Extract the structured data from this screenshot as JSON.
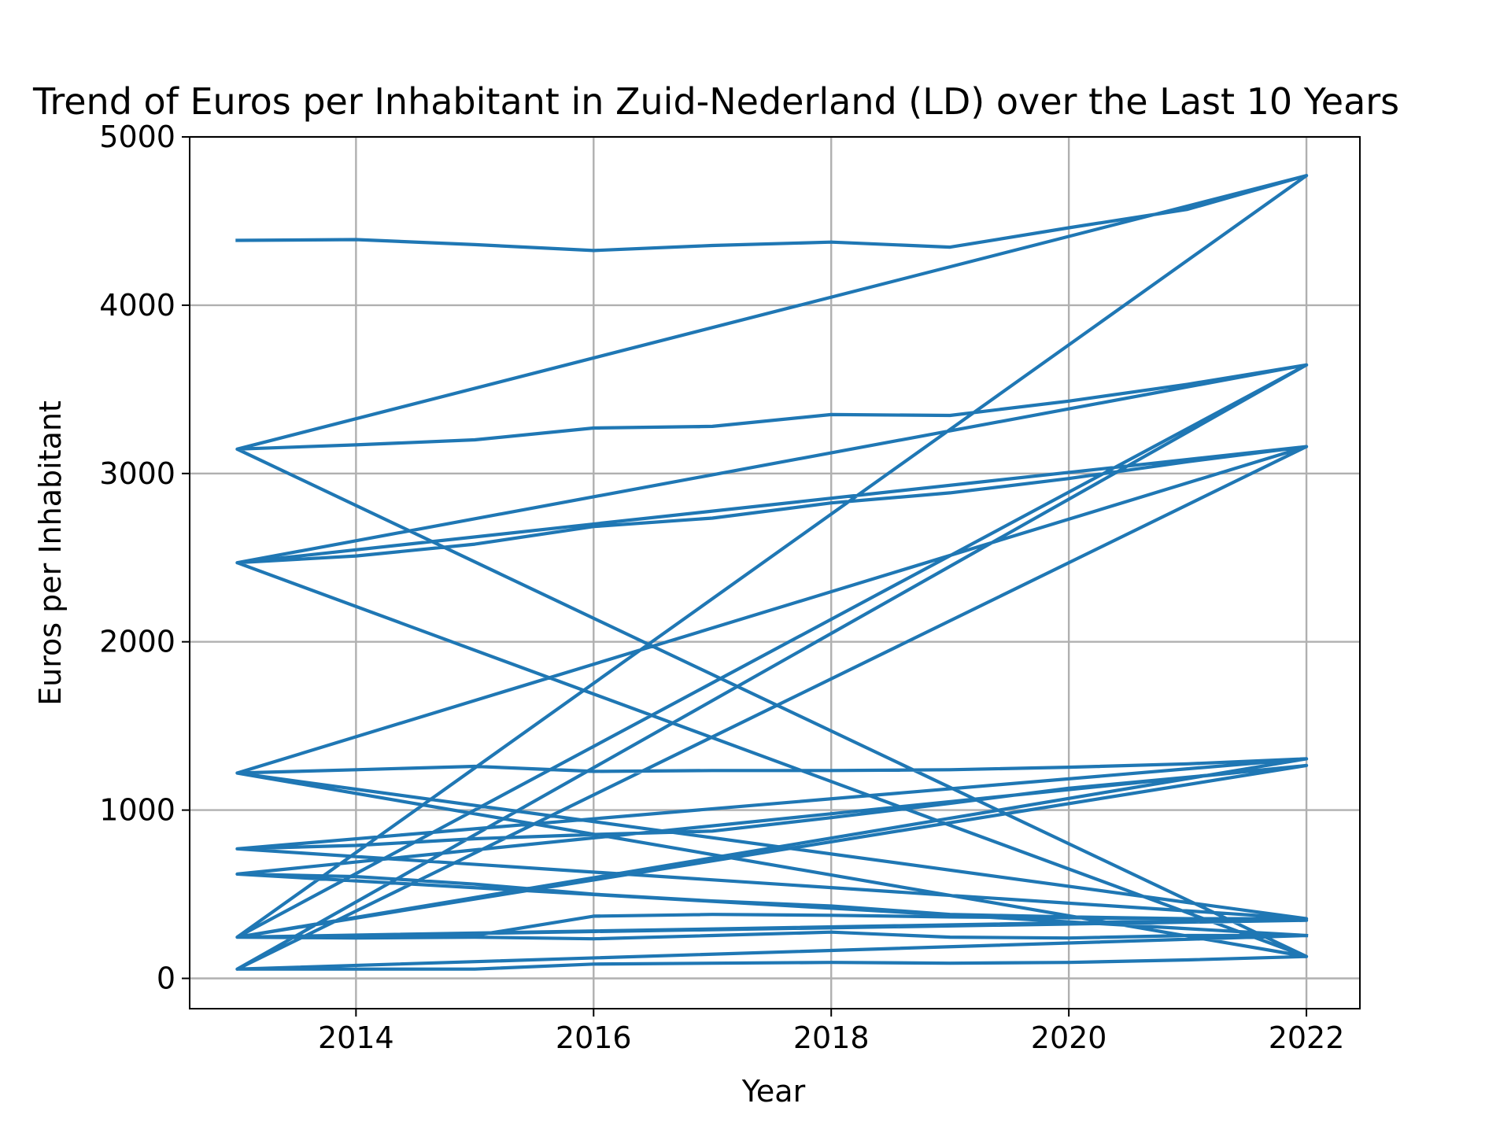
{
  "chart_data": {
    "type": "line",
    "title": "Trend of Euros per Inhabitant in Zuid-Nederland (LD) over the Last 10 Years",
    "xlabel": "Year",
    "ylabel": "Euros per Inhabitant",
    "xlim": [
      2012.6,
      2022.45
    ],
    "ylim": [
      -180,
      5000
    ],
    "xticks": [
      2014,
      2016,
      2018,
      2020,
      2022
    ],
    "yticks": [
      0,
      1000,
      2000,
      3000,
      4000,
      5000
    ],
    "grid": true,
    "line_color": "#1f77b4",
    "note_single_connected_line_points": true,
    "points": [
      [
        2013,
        4385
      ],
      [
        2014,
        4390
      ],
      [
        2015,
        4360
      ],
      [
        2016,
        4325
      ],
      [
        2017,
        4355
      ],
      [
        2018,
        4375
      ],
      [
        2019,
        4345
      ],
      [
        2020,
        4460
      ],
      [
        2021,
        4570
      ],
      [
        2022,
        4770
      ],
      [
        2013,
        3145
      ],
      [
        2014,
        3170
      ],
      [
        2015,
        3200
      ],
      [
        2016,
        3270
      ],
      [
        2017,
        3280
      ],
      [
        2018,
        3350
      ],
      [
        2019,
        3345
      ],
      [
        2020,
        3430
      ],
      [
        2021,
        3530
      ],
      [
        2022,
        3645
      ],
      [
        2013,
        2470
      ],
      [
        2014,
        2510
      ],
      [
        2015,
        2580
      ],
      [
        2016,
        2685
      ],
      [
        2017,
        2735
      ],
      [
        2018,
        2825
      ],
      [
        2019,
        2885
      ],
      [
        2020,
        2970
      ],
      [
        2021,
        3070
      ],
      [
        2022,
        3160
      ],
      [
        2013,
        1220
      ],
      [
        2014,
        1240
      ],
      [
        2015,
        1260
      ],
      [
        2016,
        1230
      ],
      [
        2017,
        1235
      ],
      [
        2018,
        1235
      ],
      [
        2019,
        1240
      ],
      [
        2020,
        1255
      ],
      [
        2021,
        1275
      ],
      [
        2022,
        1305
      ],
      [
        2013,
        770
      ],
      [
        2014,
        790
      ],
      [
        2015,
        830
      ],
      [
        2016,
        855
      ],
      [
        2017,
        875
      ],
      [
        2018,
        955
      ],
      [
        2019,
        1040
      ],
      [
        2020,
        1130
      ],
      [
        2021,
        1195
      ],
      [
        2022,
        1265
      ],
      [
        2013,
        620
      ],
      [
        2014,
        605
      ],
      [
        2015,
        560
      ],
      [
        2016,
        500
      ],
      [
        2017,
        460
      ],
      [
        2018,
        430
      ],
      [
        2019,
        380
      ],
      [
        2020,
        365
      ],
      [
        2021,
        355
      ],
      [
        2022,
        355
      ],
      [
        2013,
        245
      ],
      [
        2014,
        245
      ],
      [
        2015,
        255
      ],
      [
        2016,
        370
      ],
      [
        2017,
        380
      ],
      [
        2018,
        375
      ],
      [
        2019,
        365
      ],
      [
        2020,
        360
      ],
      [
        2021,
        355
      ],
      [
        2022,
        345
      ],
      [
        2013,
        245
      ],
      [
        2014,
        240
      ],
      [
        2015,
        245
      ],
      [
        2016,
        235
      ],
      [
        2017,
        255
      ],
      [
        2018,
        275
      ],
      [
        2019,
        245
      ],
      [
        2020,
        240
      ],
      [
        2021,
        255
      ],
      [
        2022,
        255
      ],
      [
        2013,
        55
      ],
      [
        2014,
        55
      ],
      [
        2015,
        55
      ],
      [
        2016,
        85
      ],
      [
        2017,
        90
      ],
      [
        2018,
        95
      ],
      [
        2019,
        90
      ],
      [
        2020,
        95
      ],
      [
        2021,
        110
      ],
      [
        2022,
        130
      ],
      [
        2013,
        3145
      ],
      [
        2022,
        4770
      ],
      [
        2013,
        245
      ],
      [
        2022,
        3645
      ],
      [
        2013,
        55
      ],
      [
        2022,
        3160
      ],
      [
        2013,
        2470
      ],
      [
        2022,
        130
      ],
      [
        2013,
        1220
      ],
      [
        2022,
        355
      ],
      [
        2013,
        770
      ],
      [
        2022,
        1305
      ],
      [
        2013,
        245
      ],
      [
        2022,
        1265
      ],
      [
        2013,
        620
      ],
      [
        2022,
        255
      ]
    ]
  }
}
